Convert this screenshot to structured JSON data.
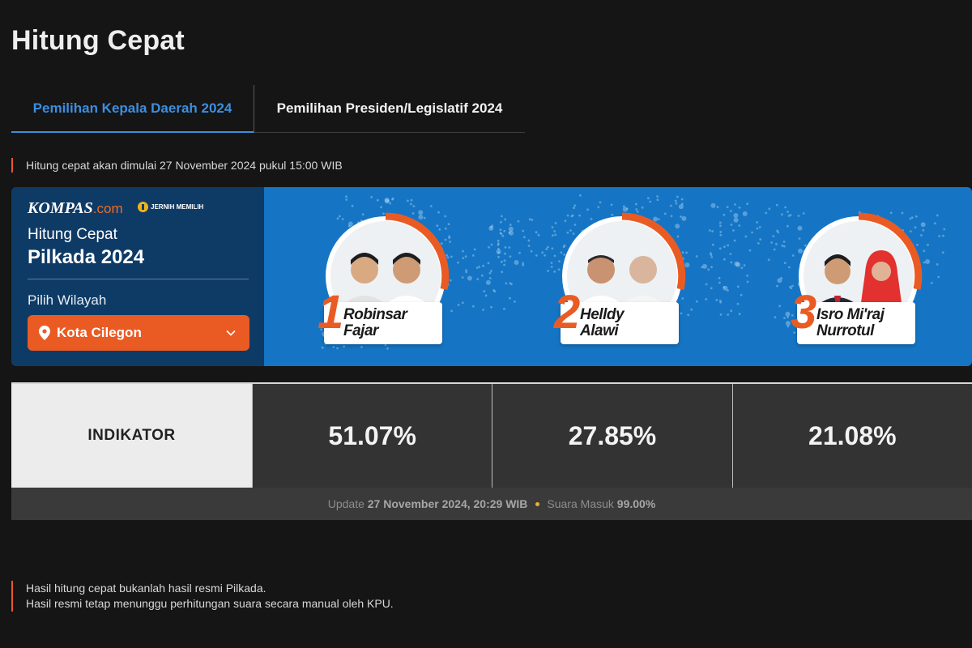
{
  "page": {
    "title": "Hitung Cepat"
  },
  "tabs": [
    {
      "label": "Pemilihan Kepala Daerah 2024",
      "active": true
    },
    {
      "label": "Pemilihan Presiden/Legislatif 2024",
      "active": false
    }
  ],
  "notice": "Hitung cepat akan dimulai 27 November 2024 pukul 15:00 WIB",
  "banner": {
    "logo_main": "KOMPAS",
    "logo_suffix": ".com",
    "badge": "JERNIH MEMILIH",
    "subtitle": "Hitung Cepat",
    "title": "Pilkada 2024",
    "region_label": "Pilih Wilayah",
    "region_value": "Kota Cilegon"
  },
  "candidates": [
    {
      "number": "1",
      "name_line1": "Robinsar",
      "name_line2": "Fajar"
    },
    {
      "number": "2",
      "name_line1": "Helldy",
      "name_line2": "Alawi"
    },
    {
      "number": "3",
      "name_line1": "Isro Mi'raj",
      "name_line2": "Nurrotul"
    }
  ],
  "results": {
    "source": "INDIKATOR",
    "percentages": [
      "51.07%",
      "27.85%",
      "21.08%"
    ],
    "update_prefix": "Update",
    "update_time": "27 November 2024, 20:29 WIB",
    "suara_label": "Suara Masuk",
    "suara_value": "99.00%"
  },
  "disclaimer": {
    "line1": "Hasil hitung cepat bukanlah hasil resmi Pilkada.",
    "line2": "Hasil resmi tetap menunggu perhitungan suara secara manual oleh KPU."
  },
  "colors": {
    "accent_orange": "#ea5b24",
    "tab_active": "#3c8ee0",
    "banner_blue": "#1575c4",
    "banner_navy": "#0e3b66"
  }
}
